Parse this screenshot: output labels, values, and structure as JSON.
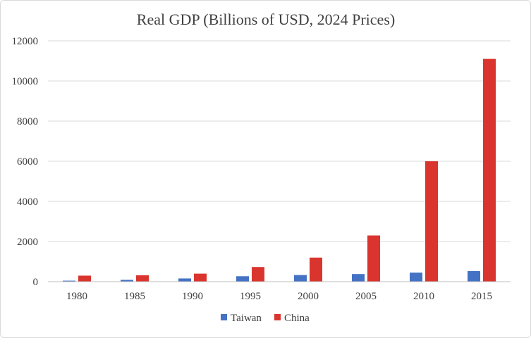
{
  "chart_data": {
    "type": "bar",
    "title": "Real GDP (Billions of USD, 2024 Prices)",
    "xlabel": "",
    "ylabel": "",
    "categories": [
      "1980",
      "1985",
      "1990",
      "1995",
      "2000",
      "2005",
      "2010",
      "2015"
    ],
    "series": [
      {
        "name": "Taiwan",
        "color": "#4472c4",
        "values": [
          50,
          90,
          160,
          270,
          330,
          380,
          450,
          530
        ]
      },
      {
        "name": "China",
        "color": "#d9352e",
        "values": [
          300,
          320,
          400,
          730,
          1200,
          2300,
          6000,
          11100
        ]
      }
    ],
    "ylim": [
      0,
      12000
    ],
    "yticks": [
      "0",
      "2000",
      "4000",
      "6000",
      "8000",
      "10000",
      "12000"
    ],
    "grid": true,
    "legend": "bottom"
  }
}
